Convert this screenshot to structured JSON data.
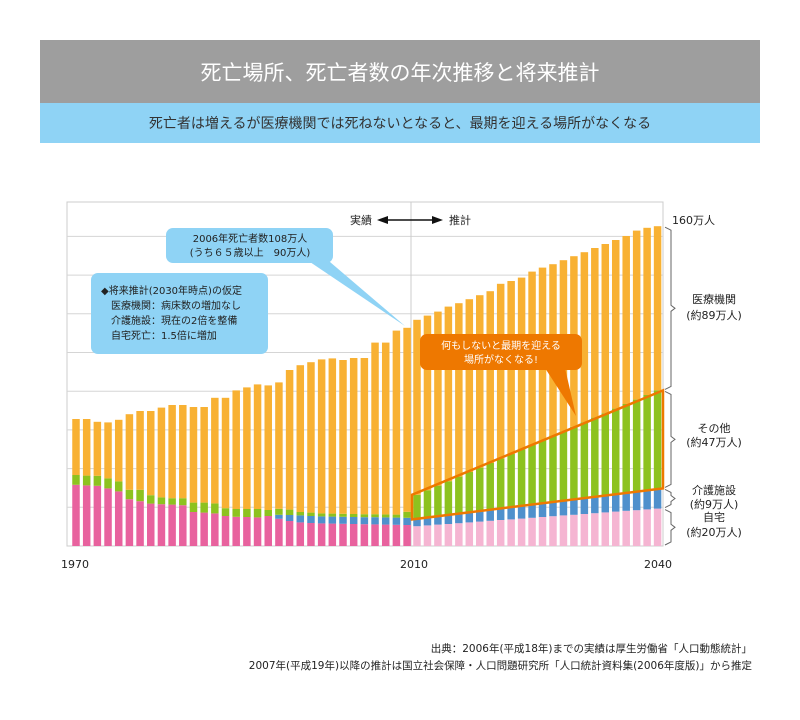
{
  "header": {
    "title": "死亡場所、死亡者数の年次推移と将来推計",
    "subtitle": "死亡者は増えるが医療機関では死ねないとなると、最期を迎える場所がなくなる"
  },
  "chart_data": {
    "type": "bar",
    "stacked": true,
    "x_tick_labels": [
      "1970",
      "2010",
      "2040"
    ],
    "ylim": [
      0,
      172
    ],
    "grid": true,
    "grid_step": 19.35,
    "period_labels": {
      "actual": "実績",
      "projection": "推計"
    },
    "top_label": "160万人",
    "colors": {
      "hospital": "#f8b133",
      "other": "#8dc21f",
      "care": "#4f90cc",
      "home_actual": "#e8629e",
      "home_projection": "#f5b5d2",
      "highlight": "#ee7800",
      "callout_blue": "#8fd3f5",
      "callout_orange": "#ee7800"
    },
    "actual": {
      "home": [
        30.6,
        30.3,
        30.1,
        28.8,
        27.3,
        23.4,
        22.4,
        21.2,
        20.9,
        20.7,
        20.4,
        17.0,
        16.7,
        16.3,
        15.0,
        14.6,
        14.5,
        14.3,
        15.0,
        13.6,
        12.5,
        11.8,
        11.5,
        11.3,
        11.2,
        11.1,
        11.0,
        10.9,
        10.8,
        10.7,
        10.6,
        10.5
      ],
      "care": [
        0,
        0,
        0,
        0,
        0,
        0,
        0,
        0,
        0,
        0,
        0,
        0,
        0,
        0,
        0,
        0,
        0,
        0,
        0,
        2.0,
        3.0,
        3.5,
        3.5,
        3.5,
        3.5,
        3.5,
        3.5,
        3.5,
        3.6,
        3.6,
        3.6,
        3.6
      ],
      "other": [
        4.9,
        4.9,
        5.0,
        5.0,
        5.0,
        4.7,
        5.7,
        4.2,
        3.4,
        3.2,
        3.5,
        4.7,
        5.0,
        5.0,
        3.9,
        3.9,
        4.0,
        4.2,
        3.0,
        3.0,
        2.7,
        1.7,
        1.7,
        1.5,
        1.5,
        1.5,
        1.5,
        1.5,
        1.5,
        1.5,
        1.5,
        3.0
      ],
      "hospital": [
        28.0,
        28.3,
        27.0,
        28.0,
        30.8,
        37.8,
        39.4,
        42.1,
        44.9,
        46.6,
        46.6,
        47.8,
        47.8,
        52.8,
        55.2,
        59.3,
        60.8,
        62.3,
        62.3,
        63.2,
        69.8,
        73.4,
        75.2,
        77.0,
        77.6,
        76.9,
        78.0,
        78.1,
        85.8,
        85.9,
        92.0,
        92.0
      ]
    },
    "projection": {
      "home": [
        9.9,
        10.3,
        10.7,
        11.0,
        11.4,
        11.8,
        12.2,
        12.6,
        13.0,
        13.3,
        13.7,
        14.1,
        14.5,
        14.9,
        15.3,
        15.6,
        16.0,
        16.4,
        16.8,
        17.2,
        17.6,
        17.9,
        18.3,
        18.7
      ],
      "care": [
        3.4,
        3.7,
        4.0,
        4.3,
        4.6,
        4.9,
        5.1,
        5.4,
        5.7,
        6.0,
        6.3,
        6.6,
        6.9,
        7.2,
        7.5,
        7.8,
        8.1,
        8.4,
        8.6,
        8.9,
        9.2,
        9.5,
        9.8,
        10.1
      ],
      "other": [
        12.3,
        13.9,
        15.5,
        17.1,
        18.7,
        20.3,
        21.9,
        23.5,
        25.1,
        26.7,
        28.3,
        29.9,
        31.5,
        33.1,
        34.6,
        36.2,
        37.8,
        39.4,
        41.0,
        42.6,
        44.2,
        45.8,
        47.4,
        49.0
      ],
      "hospital": [
        87.5,
        87.3,
        87.0,
        87.3,
        86.7,
        86.4,
        86.2,
        85.9,
        87.3,
        86.5,
        85.9,
        86.6,
        86.3,
        85.7,
        85.5,
        85.3,
        85.0,
        84.8,
        84.6,
        84.3,
        84.0,
        84.5,
        83.6,
        82.1
      ]
    },
    "segment_labels": {
      "hospital": [
        "医療機関",
        "(約89万人)"
      ],
      "other": [
        "その他",
        "(約47万人)"
      ],
      "care": [
        "介護施設",
        "(約9万人)"
      ],
      "home": [
        "自宅",
        "(約20万人)"
      ]
    },
    "annotations": {
      "deaths_2006": [
        "2006年死亡者数108万人",
        "(うち６５歳以上　90万人)"
      ],
      "assumptions": [
        "◆将来推計(2030年時点)の仮定",
        "医療機関：病床数の増加なし",
        "介護施設：現在の2倍を整備",
        "自宅死亡：1.5倍に増加"
      ],
      "warning": [
        "何もしないと最期を迎える",
        "場所がなくなる!"
      ]
    }
  },
  "source": {
    "line1": "出典：2006年(平成18年)までの実績は厚生労働省「人口動態統計」",
    "line2": "2007年(平成19年)以降の推計は国立社会保障・人口問題研究所「人口統計資料集(2006年度版)」から推定"
  }
}
